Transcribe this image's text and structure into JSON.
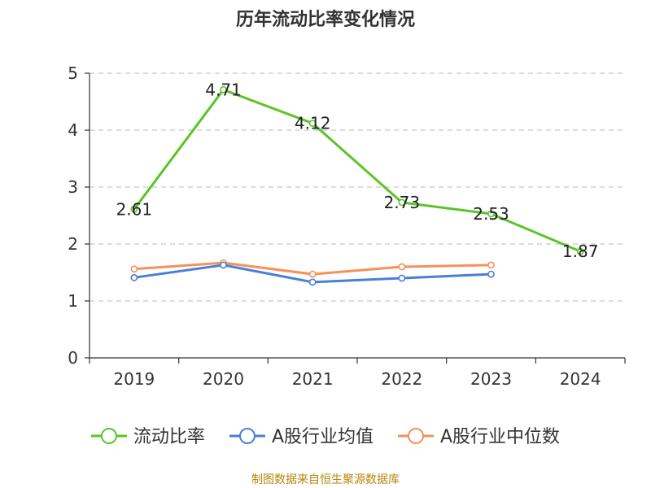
{
  "chart_data": {
    "type": "line",
    "title": "历年流动比率变化情况",
    "categories": [
      "2019",
      "2020",
      "2021",
      "2022",
      "2023",
      "2024"
    ],
    "ylim": [
      0,
      5
    ],
    "yticks": [
      "0",
      "1",
      "2",
      "3",
      "4",
      "5"
    ],
    "grid": true,
    "legend_position": "bottom",
    "series": [
      {
        "name": "流动比率",
        "color": "#5cc42a",
        "values": [
          2.61,
          4.71,
          4.12,
          2.73,
          2.53,
          1.87
        ],
        "data_labels": [
          "2.61",
          "4.71",
          "4.12",
          "2.73",
          "2.53",
          "1.87"
        ]
      },
      {
        "name": "A股行业均值",
        "color": "#4a7fd6",
        "values": [
          1.41,
          1.63,
          1.33,
          1.4,
          1.47,
          null
        ]
      },
      {
        "name": "A股行业中位数",
        "color": "#f5915a",
        "values": [
          1.56,
          1.67,
          1.47,
          1.6,
          1.63,
          null
        ]
      }
    ]
  },
  "footer": {
    "source": "制图数据来自恒生聚源数据库"
  }
}
